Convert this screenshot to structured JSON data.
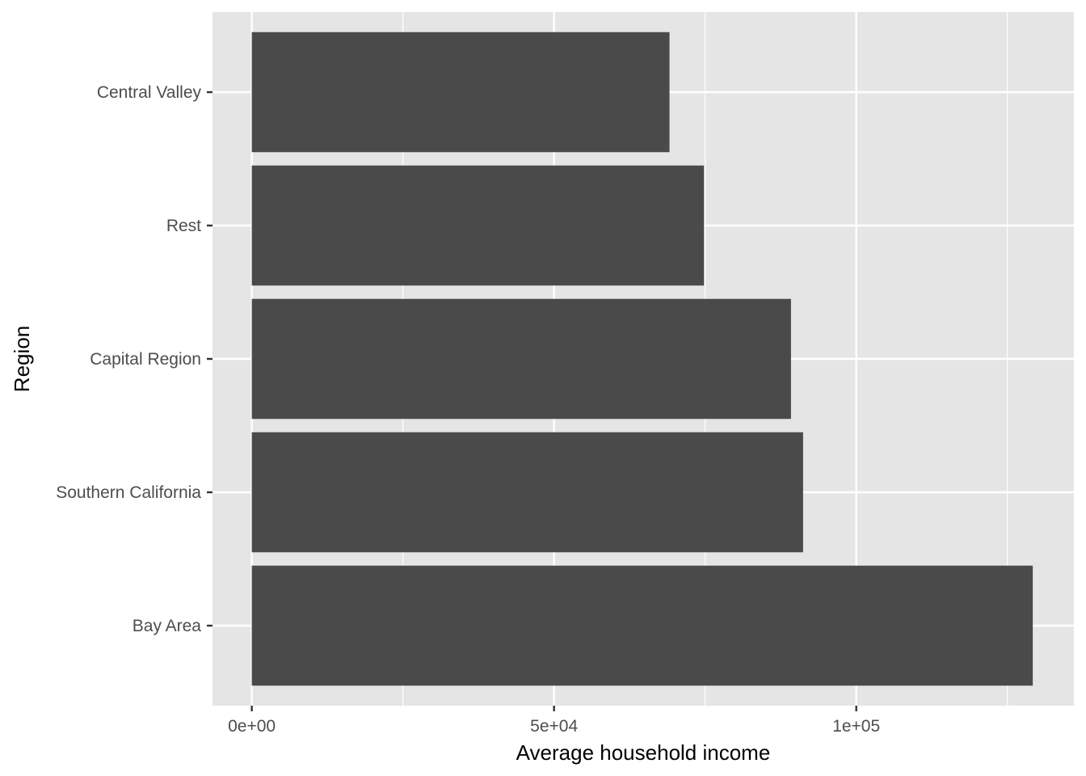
{
  "chart_data": {
    "type": "bar",
    "orientation": "horizontal",
    "title": "",
    "xlabel": "Average household income",
    "ylabel": "Region",
    "categories": [
      "Bay Area",
      "Southern California",
      "Capital Region",
      "Rest",
      "Central Valley"
    ],
    "values": [
      129200,
      91200,
      89200,
      74800,
      69100
    ],
    "xlim": [
      -6500,
      136000
    ],
    "x_ticks": [
      0,
      50000,
      100000
    ],
    "x_tick_labels": [
      "0e+00",
      "5e+04",
      "1e+05"
    ],
    "grid": true,
    "colors": {
      "panel": "#e5e5e5",
      "grid": "#ffffff",
      "bar": "#4a4a4a",
      "tick_text": "#4d4d4d",
      "tick_mark": "#333333"
    }
  }
}
